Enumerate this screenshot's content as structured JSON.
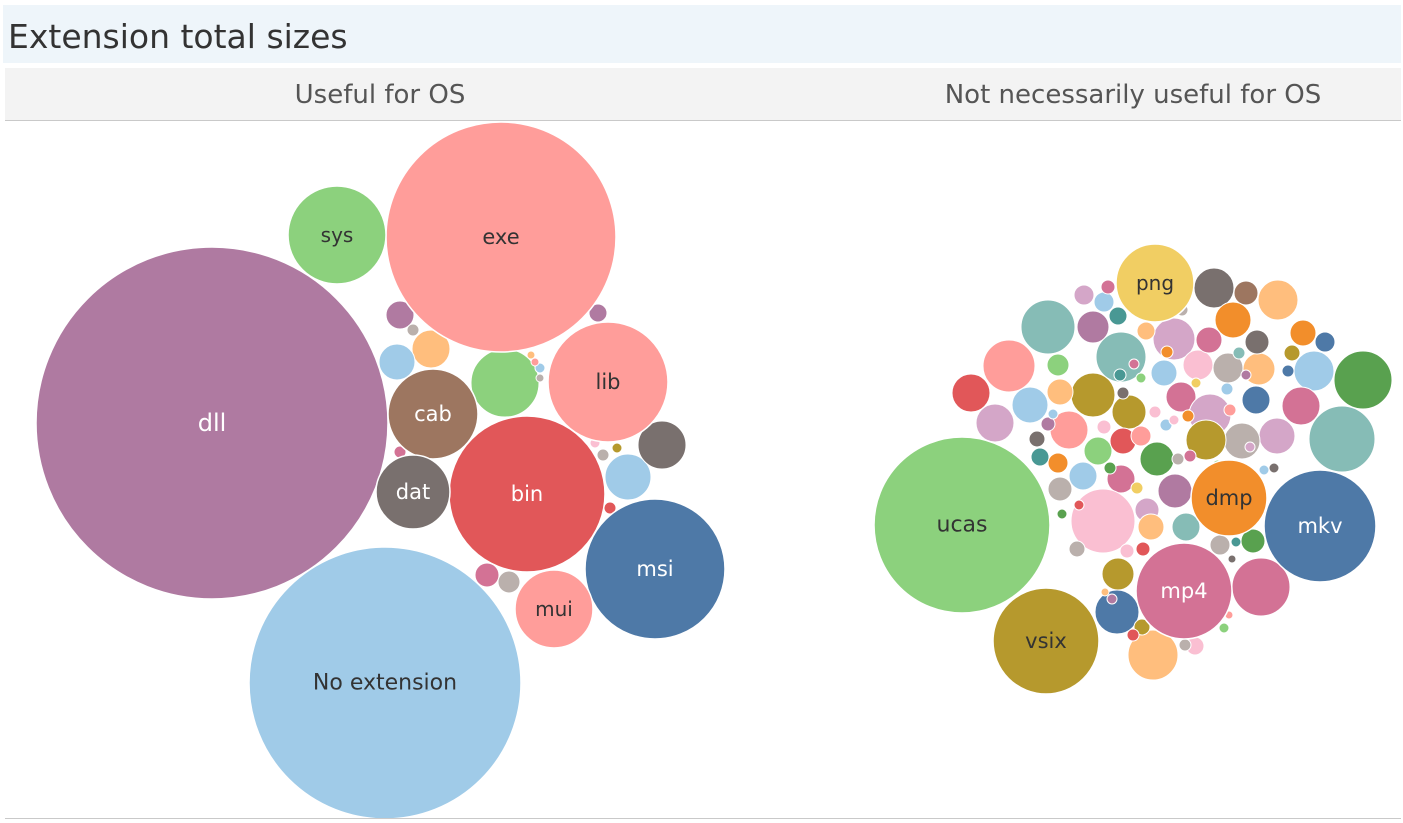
{
  "chart_data": {
    "type": "bubble",
    "title": "Extension total sizes",
    "panels": [
      {
        "name": "Useful for OS",
        "bubbles": [
          {
            "label": "dll",
            "color": "#af7aa1",
            "label_color": "#ffffff"
          },
          {
            "label": "No extension",
            "color": "#a0cbe8",
            "label_color": "#333333"
          },
          {
            "label": "exe",
            "color": "#ff9d9a",
            "label_color": "#333333"
          },
          {
            "label": "bin",
            "color": "#e15759",
            "label_color": "#ffffff"
          },
          {
            "label": "msi",
            "color": "#4e79a7",
            "label_color": "#ffffff"
          },
          {
            "label": "lib",
            "color": "#ff9d9a",
            "label_color": "#333333"
          },
          {
            "label": "sys",
            "color": "#8cd17d",
            "label_color": "#333333"
          },
          {
            "label": "cab",
            "color": "#9d7660",
            "label_color": "#ffffff"
          },
          {
            "label": "dat",
            "color": "#79706e",
            "label_color": "#ffffff"
          },
          {
            "label": "mui",
            "color": "#ff9d9a",
            "label_color": "#333333"
          }
        ]
      },
      {
        "name": "Not necessarily useful for OS",
        "bubbles": [
          {
            "label": "ucas",
            "color": "#8cd17d",
            "label_color": "#333333"
          },
          {
            "label": "mp4",
            "color": "#d37295",
            "label_color": "#ffffff"
          },
          {
            "label": "mkv",
            "color": "#4e79a7",
            "label_color": "#ffffff"
          },
          {
            "label": "vsix",
            "color": "#b6992d",
            "label_color": "#333333"
          },
          {
            "label": "dmp",
            "color": "#f28e2b",
            "label_color": "#333333"
          },
          {
            "label": "png",
            "color": "#f1ce63",
            "label_color": "#333333"
          }
        ]
      }
    ],
    "palette": [
      "#4e79a7",
      "#a0cbe8",
      "#f28e2b",
      "#ffbe7d",
      "#59a14f",
      "#8cd17d",
      "#b6992d",
      "#f1ce63",
      "#499894",
      "#86bcb6",
      "#e15759",
      "#ff9d9a",
      "#79706e",
      "#bab0ac",
      "#d37295",
      "#fabfd2",
      "#b07aa1",
      "#d4a6c8",
      "#9d7660"
    ]
  }
}
